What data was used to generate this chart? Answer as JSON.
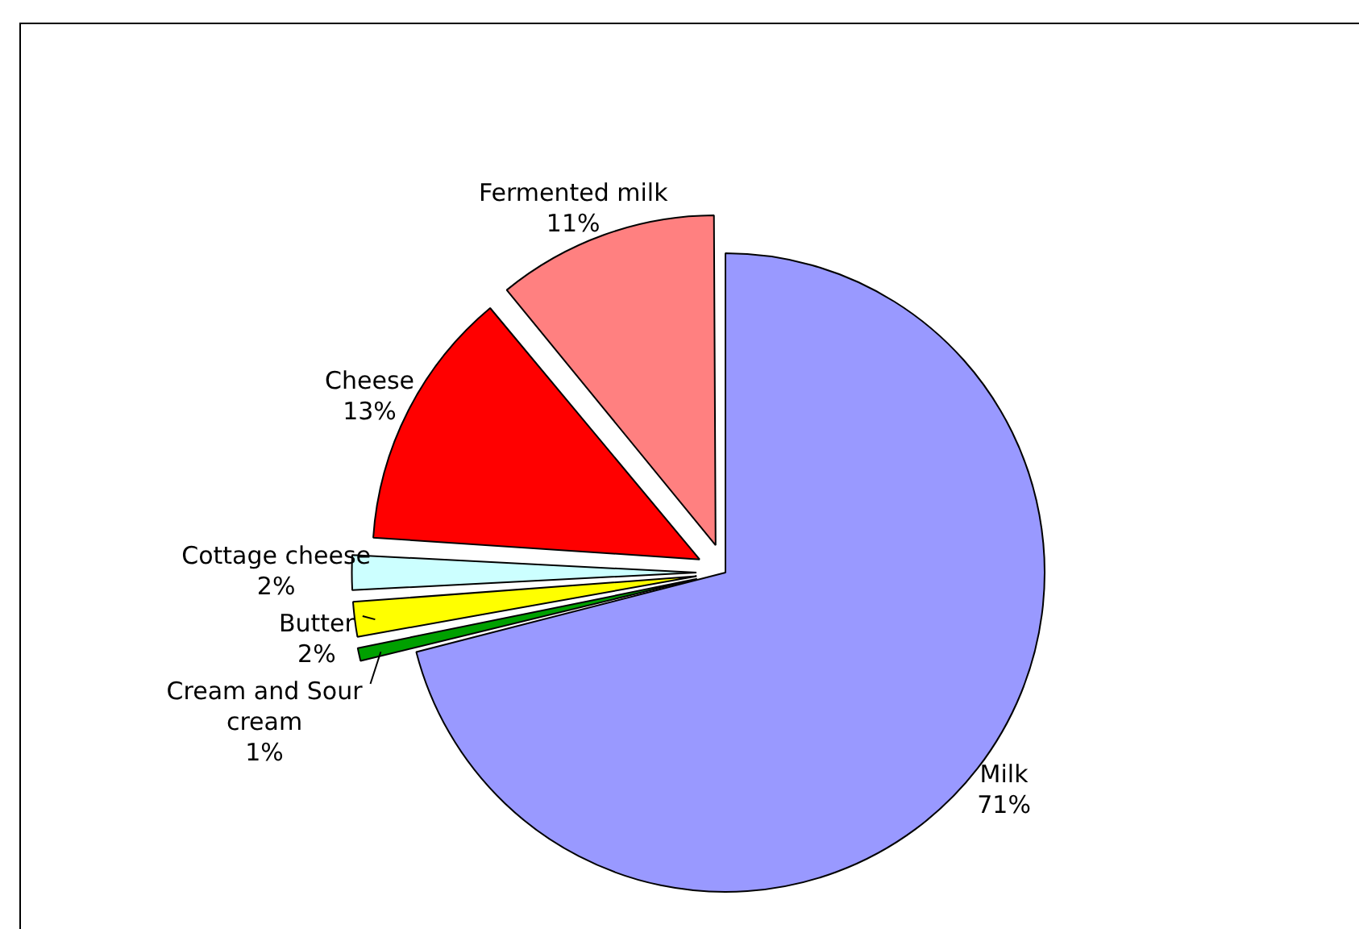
{
  "chart_data": {
    "type": "pie",
    "categories": [
      "Milk",
      "Cream and Sour cream",
      "Butter",
      "Cottage cheese",
      "Cheese",
      "Fermented milk"
    ],
    "values": [
      71,
      1,
      2,
      2,
      13,
      11
    ],
    "value_labels": [
      "71%",
      "1%",
      "2%",
      "2%",
      "13%",
      "11%"
    ],
    "colors": [
      "#9999ff",
      "#00a000",
      "#ffff00",
      "#ccffff",
      "#ff0000",
      "#ff8080"
    ],
    "legend": false
  }
}
